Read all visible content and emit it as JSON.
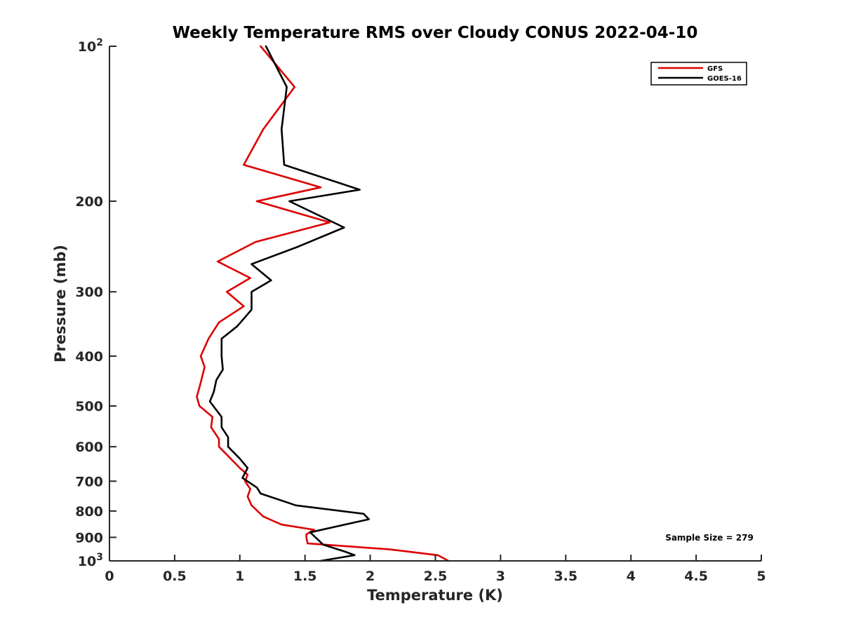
{
  "chart_data": {
    "type": "line",
    "title": "Weekly Temperature RMS over Cloudy CONUS 2022-04-10",
    "xlabel": "Temperature (K)",
    "ylabel": "Pressure (mb)",
    "xlim": [
      0,
      5
    ],
    "ylim": [
      1000,
      100
    ],
    "y_scale": "log",
    "y_reversed": true,
    "x_ticks": [
      {
        "value": 0,
        "label": "0"
      },
      {
        "value": 0.5,
        "label": "0.5"
      },
      {
        "value": 1,
        "label": "1"
      },
      {
        "value": 1.5,
        "label": "1.5"
      },
      {
        "value": 2,
        "label": "2"
      },
      {
        "value": 2.5,
        "label": "2.5"
      },
      {
        "value": 3,
        "label": "3"
      },
      {
        "value": 3.5,
        "label": "3.5"
      },
      {
        "value": 4,
        "label": "4"
      },
      {
        "value": 4.5,
        "label": "4.5"
      },
      {
        "value": 5,
        "label": "5"
      }
    ],
    "y_ticks": [
      {
        "value": 100,
        "label": "10",
        "sup": "2"
      },
      {
        "value": 200,
        "label": "200",
        "sup": ""
      },
      {
        "value": 300,
        "label": "300",
        "sup": ""
      },
      {
        "value": 400,
        "label": "400",
        "sup": ""
      },
      {
        "value": 500,
        "label": "500",
        "sup": ""
      },
      {
        "value": 600,
        "label": "600",
        "sup": ""
      },
      {
        "value": 700,
        "label": "700",
        "sup": ""
      },
      {
        "value": 800,
        "label": "800",
        "sup": ""
      },
      {
        "value": 900,
        "label": "900",
        "sup": ""
      },
      {
        "value": 1000,
        "label": "10",
        "sup": "3"
      }
    ],
    "grid": false,
    "legend_position": "top-right",
    "series": [
      {
        "name": "GFS",
        "color": "#dd0000",
        "points": [
          [
            1.16,
            100
          ],
          [
            1.42,
            120
          ],
          [
            1.18,
            145
          ],
          [
            1.03,
            170
          ],
          [
            1.62,
            188
          ],
          [
            1.13,
            200
          ],
          [
            1.69,
            220
          ],
          [
            1.12,
            240
          ],
          [
            0.83,
            262
          ],
          [
            1.08,
            282
          ],
          [
            0.9,
            300
          ],
          [
            1.03,
            320
          ],
          [
            0.84,
            344
          ],
          [
            0.76,
            370
          ],
          [
            0.7,
            400
          ],
          [
            0.73,
            420
          ],
          [
            0.7,
            450
          ],
          [
            0.67,
            480
          ],
          [
            0.69,
            500
          ],
          [
            0.79,
            525
          ],
          [
            0.78,
            550
          ],
          [
            0.84,
            580
          ],
          [
            0.84,
            600
          ],
          [
            0.93,
            633
          ],
          [
            1.0,
            660
          ],
          [
            1.06,
            680
          ],
          [
            1.04,
            700
          ],
          [
            1.08,
            725
          ],
          [
            1.06,
            750
          ],
          [
            1.09,
            780
          ],
          [
            1.18,
            820
          ],
          [
            1.32,
            850
          ],
          [
            1.57,
            870
          ],
          [
            1.51,
            888
          ],
          [
            1.51,
            900
          ],
          [
            1.52,
            925
          ],
          [
            2.15,
            950
          ],
          [
            2.52,
            975
          ],
          [
            2.6,
            1000
          ]
        ]
      },
      {
        "name": "GOES-16",
        "color": "#000000",
        "points": [
          [
            1.2,
            100
          ],
          [
            1.36,
            120
          ],
          [
            1.32,
            145
          ],
          [
            1.34,
            170
          ],
          [
            1.92,
            190
          ],
          [
            1.38,
            200
          ],
          [
            1.8,
            225
          ],
          [
            1.45,
            245
          ],
          [
            1.09,
            265
          ],
          [
            1.24,
            285
          ],
          [
            1.09,
            300
          ],
          [
            1.09,
            325
          ],
          [
            0.98,
            350
          ],
          [
            0.86,
            370
          ],
          [
            0.86,
            400
          ],
          [
            0.87,
            425
          ],
          [
            0.82,
            445
          ],
          [
            0.8,
            470
          ],
          [
            0.77,
            490
          ],
          [
            0.86,
            525
          ],
          [
            0.86,
            550
          ],
          [
            0.91,
            575
          ],
          [
            0.91,
            600
          ],
          [
            1.0,
            633
          ],
          [
            1.06,
            660
          ],
          [
            1.02,
            690
          ],
          [
            1.13,
            720
          ],
          [
            1.16,
            740
          ],
          [
            1.43,
            780
          ],
          [
            1.95,
            810
          ],
          [
            1.99,
            830
          ],
          [
            1.54,
            880
          ],
          [
            1.58,
            900
          ],
          [
            1.64,
            930
          ],
          [
            1.81,
            960
          ],
          [
            1.88,
            975
          ],
          [
            1.62,
            1000
          ]
        ]
      }
    ],
    "annotation": "Sample Size = 279"
  }
}
